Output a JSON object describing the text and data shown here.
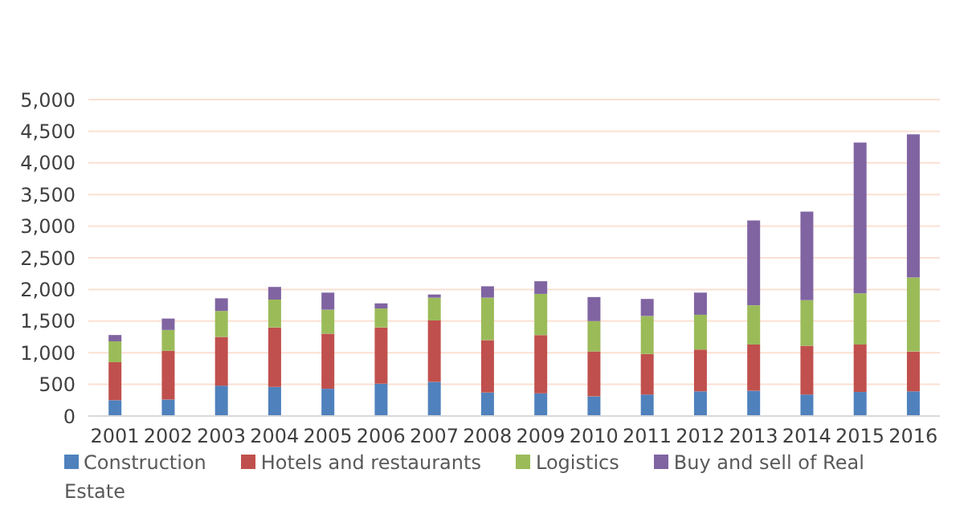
{
  "chart_data": {
    "type": "bar",
    "stacked": true,
    "categories": [
      "2001",
      "2002",
      "2003",
      "2004",
      "2005",
      "2006",
      "2007",
      "2008",
      "2009",
      "2010",
      "2011",
      "2012",
      "2013",
      "2014",
      "2015",
      "2016"
    ],
    "series": [
      {
        "name": "Construction",
        "color": "#4f81bd",
        "values": [
          250,
          260,
          480,
          460,
          430,
          510,
          540,
          370,
          360,
          310,
          340,
          390,
          400,
          340,
          380,
          390
        ]
      },
      {
        "name": "Hotels and restaurants",
        "color": "#c0504d",
        "values": [
          600,
          770,
          770,
          940,
          870,
          890,
          970,
          830,
          920,
          710,
          640,
          660,
          730,
          770,
          750,
          630
        ]
      },
      {
        "name": "Logistics",
        "color": "#9bbb59",
        "values": [
          330,
          330,
          410,
          440,
          380,
          300,
          360,
          670,
          650,
          480,
          600,
          550,
          620,
          720,
          810,
          1170
        ]
      },
      {
        "name": "Buy and sell of Real Estate",
        "color": "#8064a2",
        "values": [
          100,
          180,
          200,
          200,
          270,
          80,
          50,
          180,
          200,
          380,
          270,
          350,
          1340,
          1400,
          2380,
          2260
        ]
      }
    ],
    "ylim": [
      0,
      5000
    ],
    "yticks": [
      0,
      500,
      {
        "value": 1000,
        "label": "1,000"
      },
      {
        "value": 1500,
        "label": "1,500"
      },
      {
        "value": 2000,
        "label": "2,000"
      },
      {
        "value": 2500,
        "label": "2,500"
      },
      {
        "value": 3000,
        "label": "3,000"
      },
      {
        "value": 3500,
        "label": "3,500"
      },
      {
        "value": 4000,
        "label": "4,000"
      },
      {
        "value": 4500,
        "label": "4,500"
      },
      {
        "value": 5000,
        "label": "5,000"
      }
    ],
    "grid": "y",
    "legend": "bottom"
  }
}
